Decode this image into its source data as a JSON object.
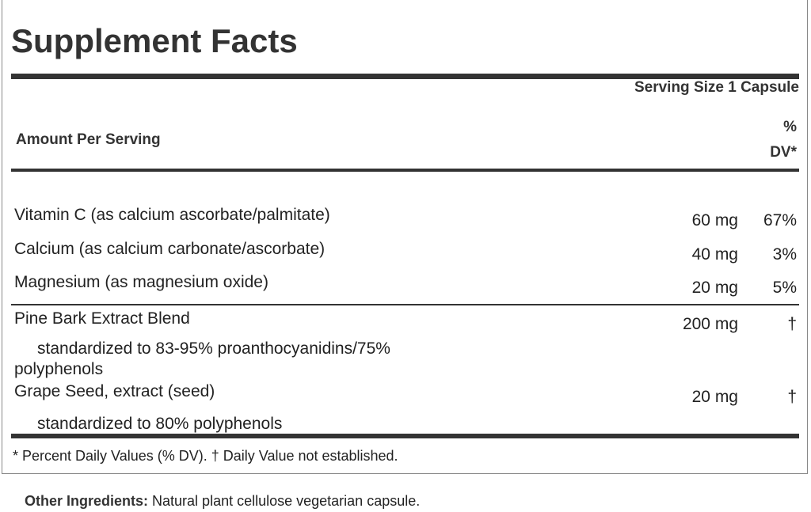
{
  "title": "Supplement Facts",
  "serving_size": "Serving Size 1 Capsule",
  "amount_per_serving": "Amount Per Serving",
  "dv_header_line1": "%",
  "dv_header_line2": "DV*",
  "nutrients": [
    {
      "name": "Vitamin C (as calcium ascorbate/palmitate)",
      "amount": "60 mg",
      "dv": "67%"
    },
    {
      "name": "Calcium (as calcium carbonate/ascorbate)",
      "amount": "40 mg",
      "dv": "3%"
    },
    {
      "name": "Magnesium (as magnesium oxide)",
      "amount": "20 mg",
      "dv": "5%"
    }
  ],
  "blends": [
    {
      "name": "Pine Bark Extract Blend",
      "amount": "200 mg",
      "dv": "†",
      "detail_line1": "standardized to 83-95% proanthocyanidins/75%",
      "detail_line2": "polyphenols"
    },
    {
      "name": "Grape Seed, extract (seed)",
      "amount": "20 mg",
      "dv": "†",
      "detail_line1": "standardized to 80% polyphenols"
    }
  ],
  "footnote": "* Percent Daily Values (% DV). † Daily Value not established.",
  "other_ingredients_label": "Other Ingredients:",
  "other_ingredients": "Natural plant cellulose vegetarian capsule."
}
